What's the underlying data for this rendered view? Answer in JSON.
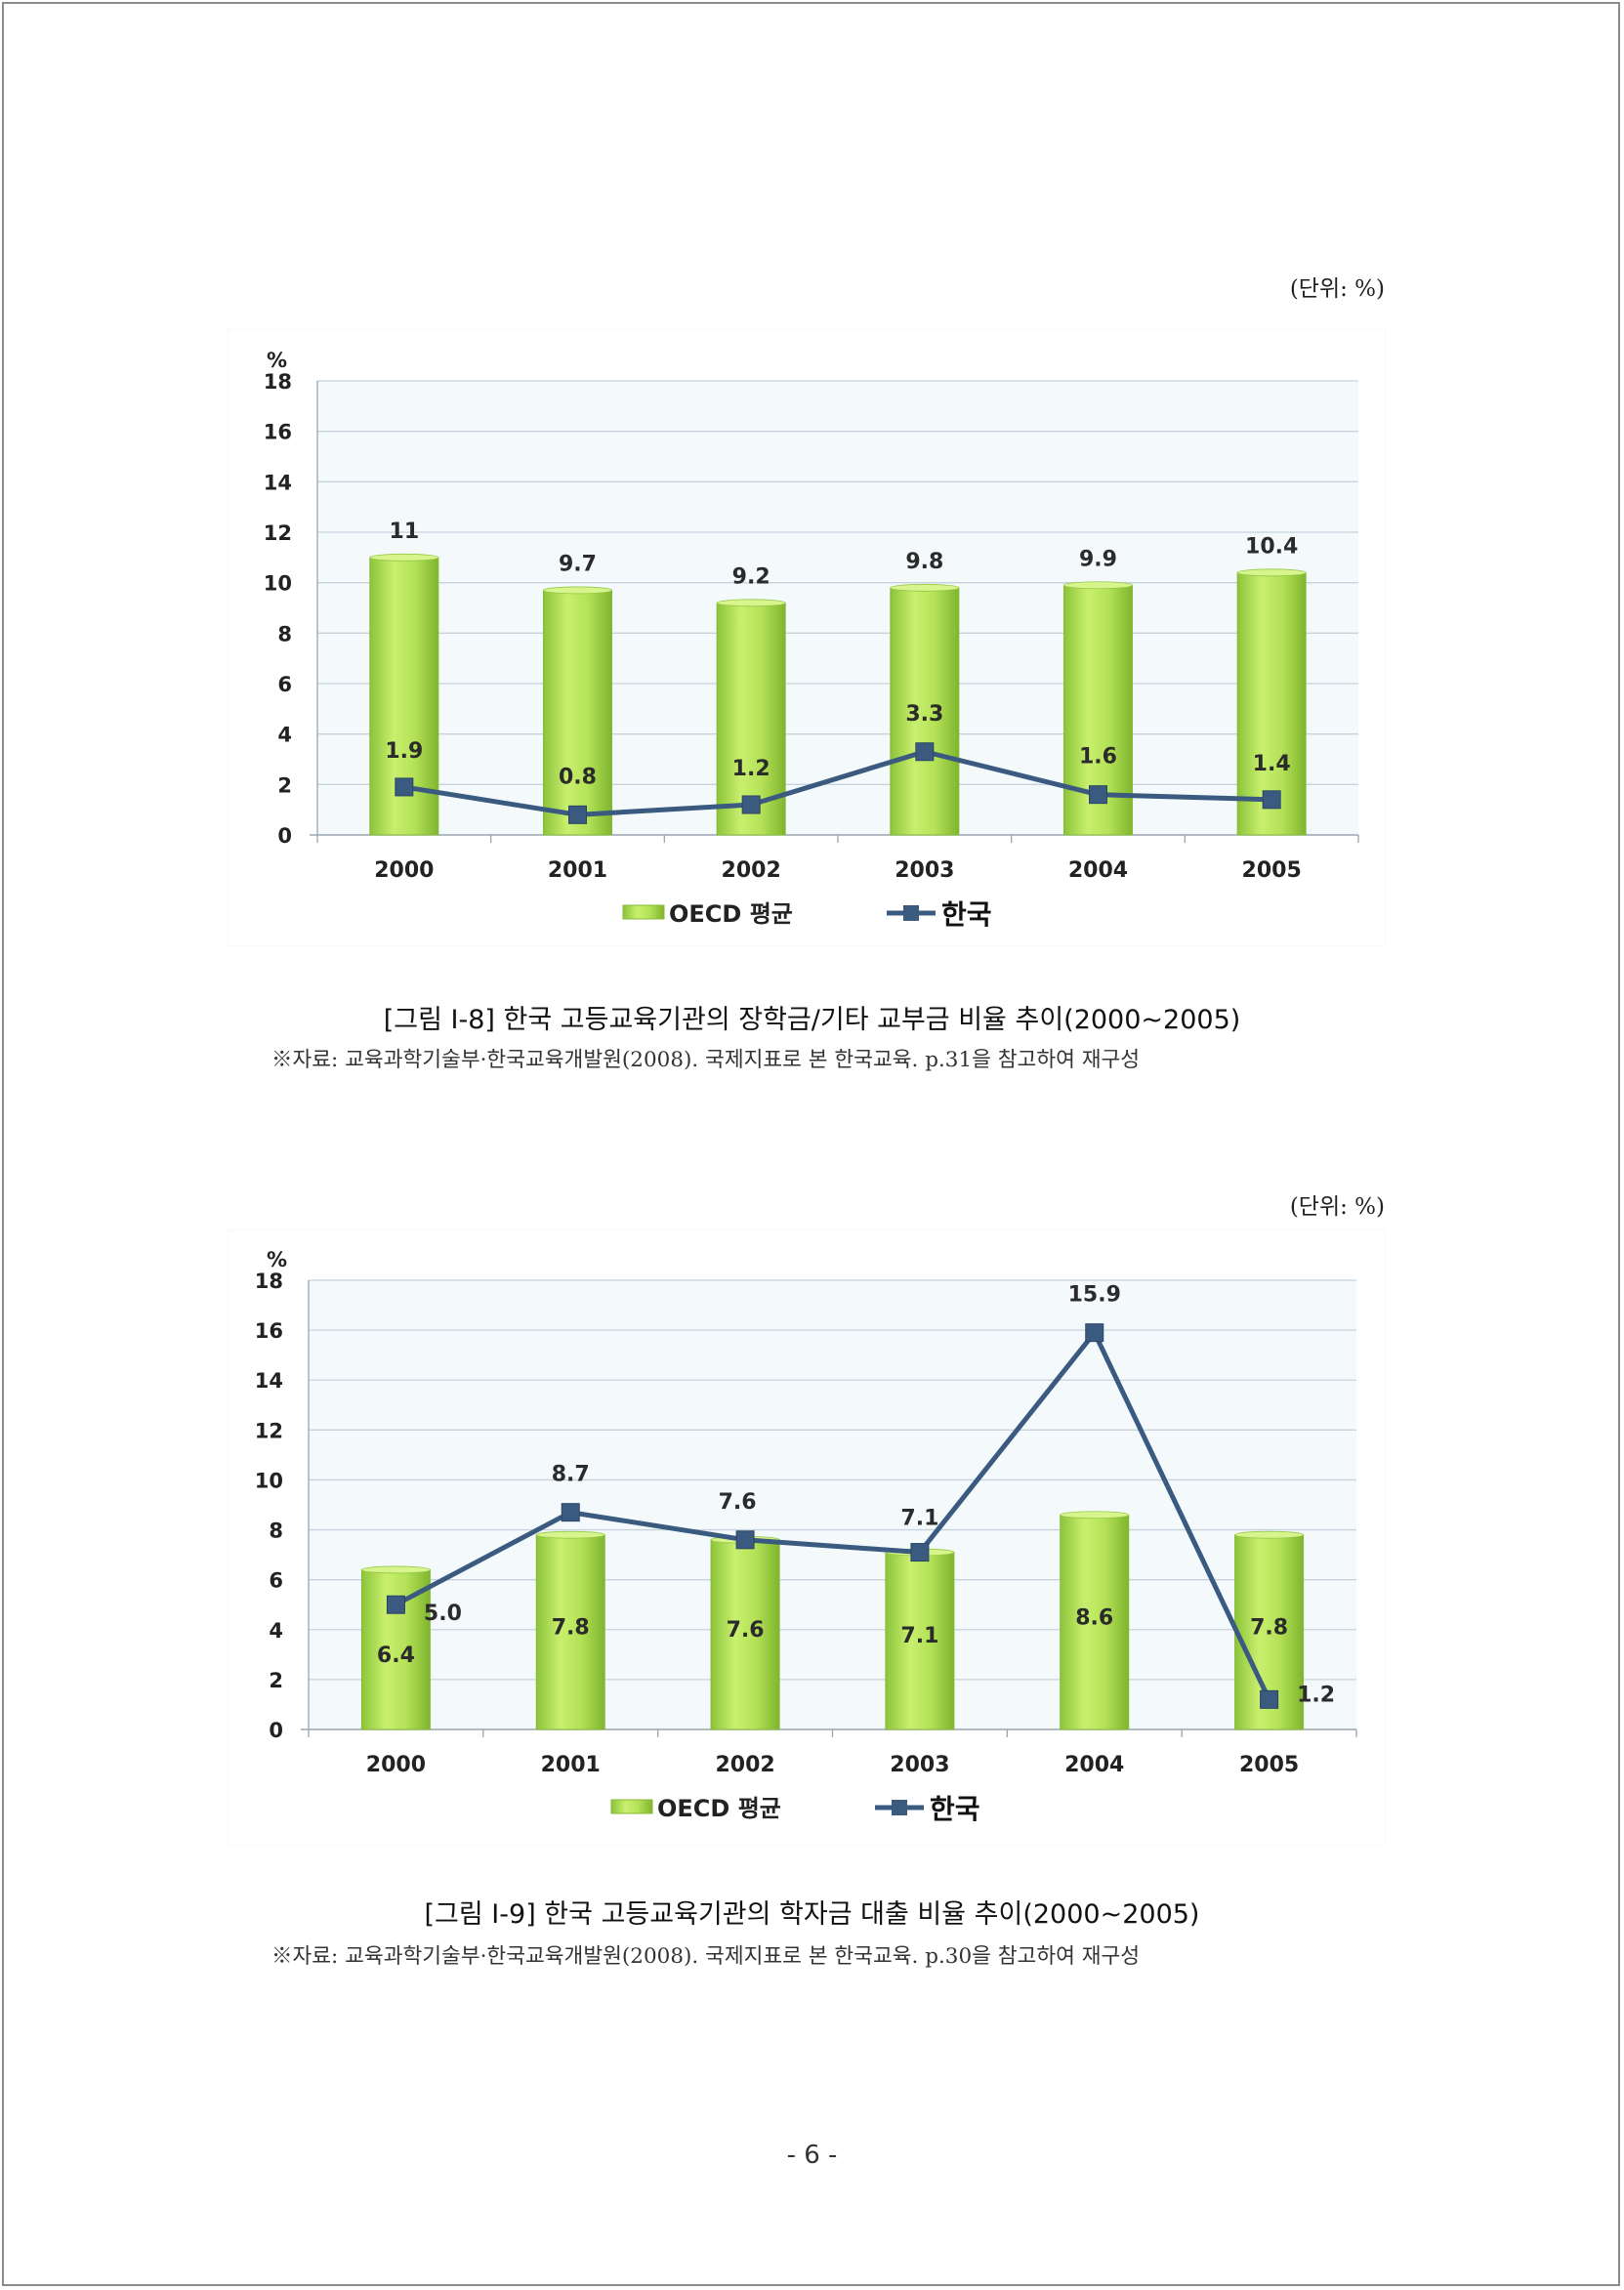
{
  "page": {
    "number": "- 6 -"
  },
  "figures": [
    {
      "unit_label": "(단위: %)",
      "caption": "[그림 Ⅰ-8] 한국 고등교육기관의 장학금/기타 교부금 비율 추이(2000~2005)",
      "source": "※자료: 교육과학기술부·한국교육개발원(2008). 국제지표로 본 한국교육. p.31을 참고하여 재구성"
    },
    {
      "unit_label": "(단위: %)",
      "caption": "[그림 Ⅰ-9] 한국 고등교육기관의 학자금 대출 비율 추이(2000~2005)",
      "source": "※자료: 교육과학기술부·한국교육개발원(2008). 국제지표로 본 한국교육. p.30을 참고하여 재구성"
    }
  ],
  "colors": {
    "bar": "#a9dc4a",
    "line": "#3b5a80",
    "grid": "#c8d2dc",
    "plot_bg": "#f4fafc"
  },
  "chart_data": [
    {
      "type": "bar+line",
      "y_unit_label": "%",
      "ylim": [
        0,
        18
      ],
      "yticks": [
        0,
        2,
        4,
        6,
        8,
        10,
        12,
        14,
        16,
        18
      ],
      "categories": [
        "2000",
        "2001",
        "2002",
        "2003",
        "2004",
        "2005"
      ],
      "series": [
        {
          "name": "OECD 평균",
          "type": "bar",
          "values": [
            11,
            9.7,
            9.2,
            9.8,
            9.9,
            10.4
          ],
          "labels": [
            "11",
            "9.7",
            "9.2",
            "9.8",
            "9.9",
            "10.4"
          ]
        },
        {
          "name": "한국",
          "type": "line",
          "values": [
            1.9,
            0.8,
            1.2,
            3.3,
            1.6,
            1.4
          ],
          "labels": [
            "1.9",
            "0.8",
            "1.2",
            "3.3",
            "1.6",
            "1.4"
          ]
        }
      ],
      "legend": "bottom",
      "grid": true
    },
    {
      "type": "bar+line",
      "y_unit_label": "%",
      "ylim": [
        0,
        18
      ],
      "yticks": [
        0,
        2,
        4,
        6,
        8,
        10,
        12,
        14,
        16,
        18
      ],
      "categories": [
        "2000",
        "2001",
        "2002",
        "2003",
        "2004",
        "2005"
      ],
      "series": [
        {
          "name": "OECD 평균",
          "type": "bar",
          "values": [
            6.4,
            7.8,
            7.6,
            7.1,
            8.6,
            7.8
          ],
          "labels": [
            "6.4",
            "7.8",
            "7.6",
            "7.1",
            "8.6",
            "7.8"
          ]
        },
        {
          "name": "한국",
          "type": "line",
          "values": [
            5.0,
            8.7,
            7.6,
            7.1,
            15.9,
            1.2
          ],
          "labels": [
            "5.0",
            "8.7",
            "7.6",
            "7.1",
            "15.9",
            "1.2"
          ]
        }
      ],
      "legend": "bottom",
      "grid": true
    }
  ]
}
